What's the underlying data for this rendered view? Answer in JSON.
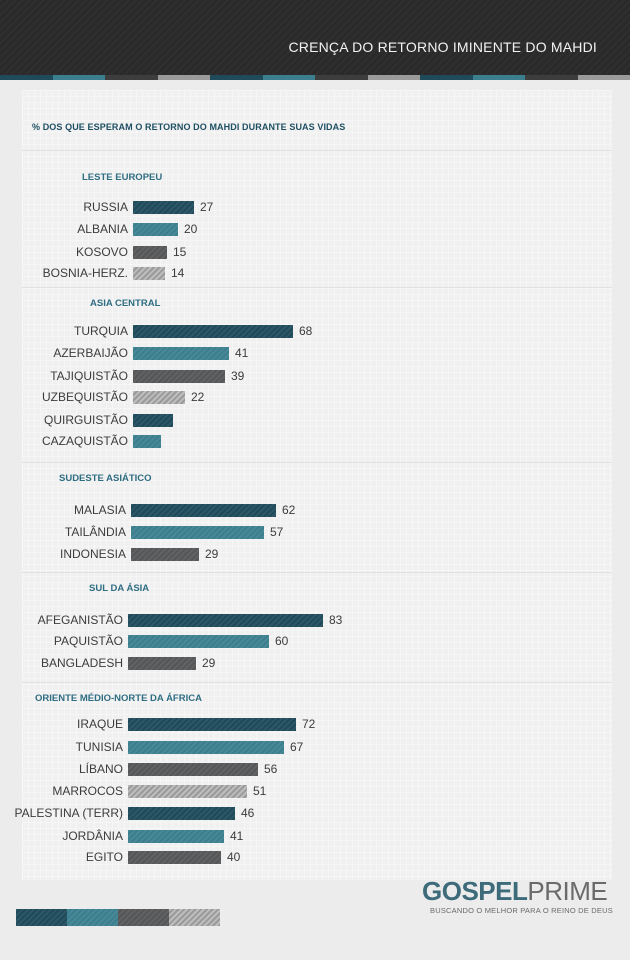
{
  "header": {
    "title": "CRENÇA DO RETORNO IMINENTE DO MAHDI"
  },
  "colors": {
    "navy": "#1e4a5a",
    "teal": "#3b7f8e",
    "darkgray": "#555657",
    "lightgray": "#9a9a9a"
  },
  "chart_data": {
    "type": "bar",
    "title": "% DOS QUE ESPERAM O RETORNO DO MAHDI DURANTE SUAS VIDAS",
    "groups": [
      {
        "name": "LESTE EUROPEU",
        "items": [
          {
            "label": "RUSSIA",
            "value": 27,
            "value_label": "27"
          },
          {
            "label": "ALBANIA",
            "value": 20,
            "value_label": "20"
          },
          {
            "label": "KOSOVO",
            "value": 15,
            "value_label": "15"
          },
          {
            "label": "BOSNIA-HERZ.",
            "value": 14,
            "value_label": "14"
          }
        ]
      },
      {
        "name": "ASIA CENTRAL",
        "items": [
          {
            "label": "TURQUIA",
            "value": 68,
            "value_label": "68"
          },
          {
            "label": "AZERBAIJÃO",
            "value": 41,
            "value_label": "41"
          },
          {
            "label": "TAJIQUISTÃO",
            "value": 39,
            "value_label": "39"
          },
          {
            "label": "UZBEQUISTÃO",
            "value": 22,
            "value_label": "22"
          },
          {
            "label": "QUIRGUISTÃO",
            "value": 17,
            "value_label": ""
          },
          {
            "label": "CAZAQUISTÃO",
            "value": 12,
            "value_label": ""
          }
        ]
      },
      {
        "name": "SUDESTE ASIÁTICO",
        "items": [
          {
            "label": "MALASIA",
            "value": 62,
            "value_label": "62"
          },
          {
            "label": "TAILÂNDIA",
            "value": 57,
            "value_label": "57"
          },
          {
            "label": "INDONESIA",
            "value": 29,
            "value_label": "29"
          }
        ]
      },
      {
        "name": "SUL DA ÁSIA",
        "items": [
          {
            "label": "AFEGANISTÃO",
            "value": 83,
            "value_label": "83"
          },
          {
            "label": "PAQUISTÃO",
            "value": 60,
            "value_label": "60"
          },
          {
            "label": "BANGLADESH",
            "value": 29,
            "value_label": "29"
          }
        ]
      },
      {
        "name": "ORIENTE MÉDIO-NORTE DA ÁFRICA",
        "items": [
          {
            "label": "IRAQUE",
            "value": 72,
            "value_label": "72"
          },
          {
            "label": "TUNISIA",
            "value": 67,
            "value_label": "67"
          },
          {
            "label": "LÍBANO",
            "value": 56,
            "value_label": "56"
          },
          {
            "label": "MARROCOS",
            "value": 51,
            "value_label": "51"
          },
          {
            "label": "PALESTINA (TERR)",
            "value": 46,
            "value_label": "46"
          },
          {
            "label": "JORDÂNIA",
            "value": 41,
            "value_label": "41"
          },
          {
            "label": "EGITO",
            "value": 40,
            "value_label": "40"
          }
        ]
      }
    ]
  },
  "logo": {
    "brand_a": "GOSPEL",
    "brand_b": "PRIME",
    "tagline": "BUSCANDO O MELHOR PARA O REINO DE DEUS"
  }
}
